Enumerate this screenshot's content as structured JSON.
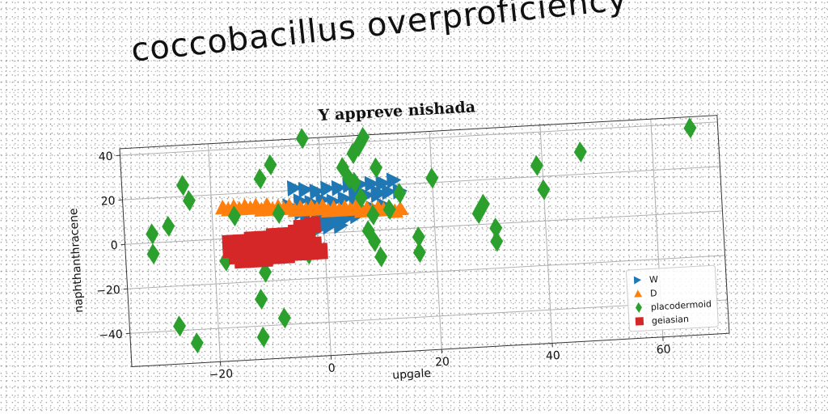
{
  "banner": "coccobacillus overproficiency",
  "chart_data": {
    "type": "scatter",
    "title": "Y appreve nishada",
    "xlabel": "upgale",
    "ylabel": "naphthanthracene",
    "xlim": [
      -36,
      72
    ],
    "ylim": [
      -55,
      43
    ],
    "xticks": [
      -20,
      0,
      20,
      40,
      60
    ],
    "yticks": [
      -40,
      -20,
      0,
      20,
      40
    ],
    "grid": true,
    "legend_position": "bottom-right",
    "series": [
      {
        "name": "W",
        "marker": "triangle-right",
        "color": "#1f77b4",
        "points": [
          [
            -5,
            21
          ],
          [
            -3,
            20
          ],
          [
            -1,
            19
          ],
          [
            1,
            20
          ],
          [
            3,
            20
          ],
          [
            5,
            21
          ],
          [
            7,
            21
          ],
          [
            9,
            21
          ],
          [
            11,
            21
          ],
          [
            13,
            22
          ],
          [
            -4,
            15
          ],
          [
            -2,
            14
          ],
          [
            0,
            15
          ],
          [
            2,
            14
          ],
          [
            4,
            15
          ],
          [
            6,
            15
          ],
          [
            8,
            16
          ],
          [
            10,
            16
          ],
          [
            12,
            17
          ],
          [
            14,
            17
          ],
          [
            -3,
            9
          ],
          [
            -1,
            8
          ],
          [
            1,
            8
          ],
          [
            3,
            9
          ],
          [
            5,
            9
          ],
          [
            7,
            10
          ],
          [
            9,
            10
          ],
          [
            11,
            11
          ],
          [
            -2,
            5
          ],
          [
            0,
            5
          ],
          [
            2,
            6
          ],
          [
            4,
            6
          ],
          [
            6,
            7
          ],
          [
            -1,
            2
          ],
          [
            1,
            3
          ],
          [
            3,
            3
          ],
          [
            10,
            17
          ],
          [
            6,
            18
          ],
          [
            -6,
            13
          ],
          [
            -4,
            10
          ]
        ]
      },
      {
        "name": "D",
        "marker": "triangle-up",
        "color": "#ff7f0e",
        "points": [
          [
            -18,
            14
          ],
          [
            -16,
            14
          ],
          [
            -14,
            14
          ],
          [
            -12,
            14
          ],
          [
            -10,
            14
          ],
          [
            -8,
            13
          ],
          [
            -6,
            13
          ],
          [
            -4,
            12
          ],
          [
            -2,
            12
          ],
          [
            0,
            12
          ],
          [
            2,
            11
          ],
          [
            4,
            11
          ],
          [
            6,
            11
          ],
          [
            8,
            10
          ],
          [
            10,
            10
          ],
          [
            12,
            10
          ],
          [
            14,
            9
          ],
          [
            -17,
            13
          ],
          [
            -15,
            13
          ],
          [
            -13,
            13
          ],
          [
            -11,
            12
          ],
          [
            -9,
            12
          ],
          [
            -7,
            12
          ],
          [
            -5,
            11
          ],
          [
            -3,
            11
          ],
          [
            -1,
            11
          ],
          [
            1,
            10
          ],
          [
            3,
            10
          ],
          [
            5,
            10
          ],
          [
            7,
            9
          ],
          [
            9,
            9
          ],
          [
            11,
            9
          ],
          [
            13,
            8
          ]
        ]
      },
      {
        "name": "placodermoid",
        "marker": "diamond",
        "color": "#2ca02c",
        "points": [
          [
            -31,
            4
          ],
          [
            -31,
            -5
          ],
          [
            -28,
            7
          ],
          [
            -25,
            25
          ],
          [
            -24,
            18
          ],
          [
            -27,
            -38
          ],
          [
            -24,
            -46
          ],
          [
            -16,
            10
          ],
          [
            -18,
            -10
          ],
          [
            -12,
            -28
          ],
          [
            -11,
            -16
          ],
          [
            -12,
            -45
          ],
          [
            -11,
            26
          ],
          [
            -9,
            32
          ],
          [
            -8,
            -37
          ],
          [
            -8,
            10
          ],
          [
            -3,
            -9
          ],
          [
            -2,
            2
          ],
          [
            -3,
            43
          ],
          [
            4,
            29
          ],
          [
            6,
            35
          ],
          [
            7,
            38
          ],
          [
            8,
            42
          ],
          [
            6,
            22
          ],
          [
            7,
            15
          ],
          [
            9,
            7
          ],
          [
            8,
            0
          ],
          [
            9,
            -5
          ],
          [
            10,
            -12
          ],
          [
            12,
            9
          ],
          [
            14,
            16
          ],
          [
            17,
            -4
          ],
          [
            17,
            -11
          ],
          [
            20,
            22
          ],
          [
            29,
            9
          ],
          [
            28,
            5
          ],
          [
            31,
            -2
          ],
          [
            31,
            -8
          ],
          [
            39,
            25
          ],
          [
            40,
            14
          ],
          [
            47,
            30
          ],
          [
            67,
            38
          ],
          [
            5,
            24
          ],
          [
            10,
            28
          ]
        ]
      },
      {
        "name": "geiasian",
        "marker": "square",
        "color": "#d62728",
        "points": [
          [
            -17,
            -2
          ],
          [
            -15,
            -2
          ],
          [
            -13,
            -1
          ],
          [
            -11,
            -1
          ],
          [
            -9,
            0
          ],
          [
            -7,
            0
          ],
          [
            -5,
            1
          ],
          [
            -3,
            2
          ],
          [
            -17,
            -5
          ],
          [
            -15,
            -5
          ],
          [
            -13,
            -4
          ],
          [
            -11,
            -4
          ],
          [
            -9,
            -3
          ],
          [
            -7,
            -3
          ],
          [
            -5,
            -2
          ],
          [
            -3,
            -1
          ],
          [
            -16,
            -8
          ],
          [
            -14,
            -8
          ],
          [
            -12,
            -7
          ],
          [
            -10,
            -7
          ],
          [
            -8,
            -6
          ],
          [
            -6,
            -6
          ],
          [
            -4,
            -5
          ],
          [
            -2,
            -5
          ],
          [
            -15,
            -10
          ],
          [
            -13,
            -10
          ],
          [
            -11,
            -10
          ],
          [
            -9,
            -9
          ],
          [
            -7,
            -9
          ],
          [
            -5,
            -8
          ],
          [
            -3,
            -8
          ],
          [
            -1,
            -8
          ],
          [
            -4,
            3
          ],
          [
            -2,
            4
          ]
        ]
      }
    ]
  }
}
